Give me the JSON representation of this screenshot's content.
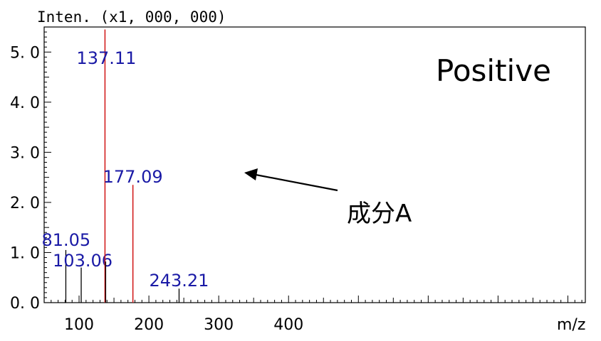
{
  "chart_data": {
    "type": "bar",
    "ylabel": "Inten. (x1, 000, 000)",
    "xlabel": "m/z",
    "mode_label": "Positive",
    "xlim": [
      50,
      825
    ],
    "ylim": [
      0,
      5.5
    ],
    "x_ticks": [
      100,
      200,
      300,
      400
    ],
    "x_tick_labels": [
      "100",
      "200",
      "300",
      "400"
    ],
    "y_ticks": [
      0,
      1,
      2,
      3,
      4,
      5
    ],
    "y_tick_labels": [
      "0. 0",
      "1. 0",
      "2. 0",
      "3. 0",
      "4. 0",
      "5. 0"
    ],
    "grid": false,
    "peaks": [
      {
        "mz": 81.05,
        "intensity": 1.05,
        "label": "81.05",
        "color": "#000000"
      },
      {
        "mz": 103.06,
        "intensity": 0.7,
        "label": "103.06",
        "color": "#000000"
      },
      {
        "mz": 137.11,
        "intensity": 5.45,
        "label": "137.11",
        "color": "#d21f1f"
      },
      {
        "mz": 138.1,
        "intensity": 0.82,
        "label": "",
        "color": "#000000"
      },
      {
        "mz": 177.09,
        "intensity": 2.35,
        "label": "177.09",
        "color": "#d21f1f"
      },
      {
        "mz": 243.21,
        "intensity": 0.28,
        "label": "243.21",
        "color": "#000000"
      }
    ],
    "annotation": {
      "text": "成分A",
      "target_peak": "177.09"
    },
    "label_color": "#1a1aa6",
    "highlight_color": "#d21f1f"
  }
}
